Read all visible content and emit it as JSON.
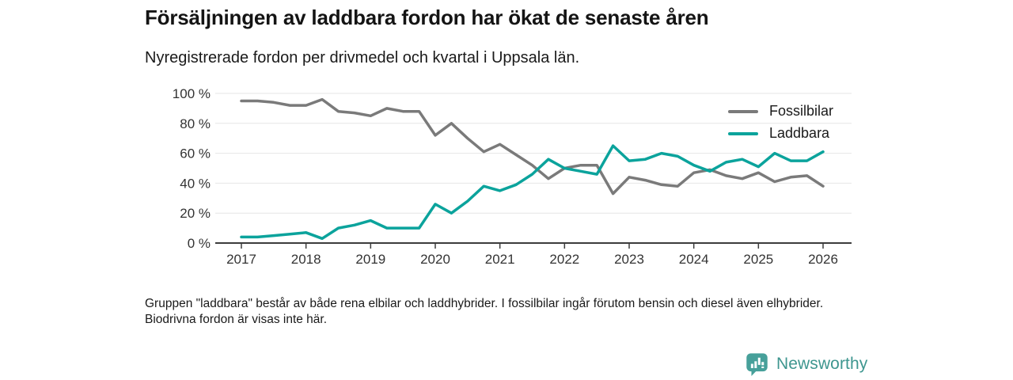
{
  "header": {
    "title": "Försäljningen av laddbara fordon har ökat de senaste åren",
    "subtitle": "Nyregistrerade fordon per drivmedel och kvartal i Uppsala län."
  },
  "chart_data": {
    "type": "line",
    "title": "Nyregistrerade fordon per drivmedel och kvartal i Uppsala län",
    "x": [
      "2017Q1",
      "2017Q2",
      "2017Q3",
      "2017Q4",
      "2018Q1",
      "2018Q2",
      "2018Q3",
      "2018Q4",
      "2019Q1",
      "2019Q2",
      "2019Q3",
      "2019Q4",
      "2020Q1",
      "2020Q2",
      "2020Q3",
      "2020Q4",
      "2021Q1",
      "2021Q2",
      "2021Q3",
      "2021Q4",
      "2022Q1",
      "2022Q2",
      "2022Q3",
      "2022Q4",
      "2023Q1",
      "2023Q2",
      "2023Q3",
      "2023Q4",
      "2024Q1",
      "2024Q2",
      "2024Q3",
      "2024Q4",
      "2025Q1",
      "2025Q2",
      "2025Q3",
      "2025Q4",
      "2026Q1"
    ],
    "x_tick_labels": [
      "2017",
      "2018",
      "2019",
      "2020",
      "2021",
      "2022",
      "2023",
      "2024",
      "2025",
      "2026"
    ],
    "y_tick_values": [
      0,
      20,
      40,
      60,
      80,
      100
    ],
    "y_tick_labels": [
      "0 %",
      "20 %",
      "40 %",
      "60 %",
      "80 %",
      "100 %"
    ],
    "ylim": [
      0,
      100
    ],
    "grid": true,
    "legend_position": "top-right",
    "unit": "%",
    "series": [
      {
        "name": "Fossilbilar",
        "color": "#7a7a7a",
        "values": [
          95,
          95,
          94,
          92,
          92,
          96,
          88,
          87,
          85,
          90,
          88,
          88,
          72,
          80,
          70,
          61,
          66,
          59,
          52,
          43,
          50,
          52,
          52,
          33,
          44,
          42,
          39,
          38,
          47,
          49,
          45,
          43,
          47,
          41,
          44,
          45,
          38
        ]
      },
      {
        "name": "Laddbara",
        "color": "#0ba39c",
        "values": [
          4,
          4,
          5,
          6,
          7,
          3,
          10,
          12,
          15,
          10,
          10,
          10,
          26,
          20,
          28,
          38,
          35,
          39,
          46,
          56,
          50,
          48,
          46,
          65,
          55,
          56,
          60,
          58,
          52,
          48,
          54,
          56,
          51,
          60,
          55,
          55,
          61
        ]
      }
    ]
  },
  "style_colors": {
    "grid": "#e6e6e6",
    "axis": "#3c3c3c",
    "tick_text": "#333333"
  },
  "footnote": "Gruppen \"laddbara\" består av både rena elbilar och laddhybrider. I fossilbilar ingår förutom bensin och diesel även elhybrider. Biodrivna fordon är visas inte här.",
  "logo": {
    "text": "Newsworthy",
    "color": "#3e968f",
    "icon_color": "#47a09a"
  }
}
